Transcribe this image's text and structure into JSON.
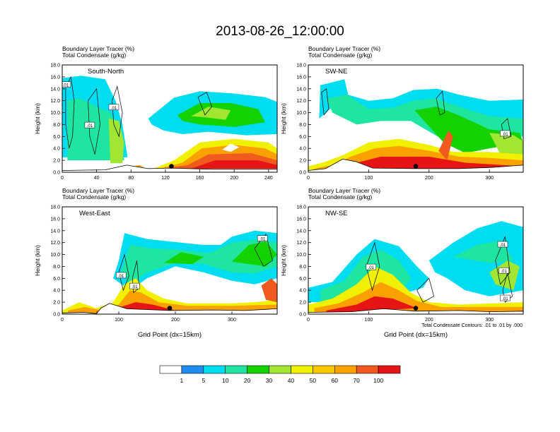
{
  "title": "2013-08-26_12:00:00",
  "colors": {
    "bins": [
      "#ffffff",
      "#1e8cf0",
      "#00dcf0",
      "#1ee6a0",
      "#14d200",
      "#a0e632",
      "#f0f000",
      "#fac800",
      "#faa000",
      "#f05a1e",
      "#e61414"
    ],
    "contour": "#000000",
    "terrain": "#000000"
  },
  "footnote": "Total Condensate Contours: .01 to .01 by .000",
  "chart_data": [
    {
      "type": "heatmap",
      "name": "South-North",
      "title_line1": "Boundary Layer Tracer    (%)",
      "title_line2": "Total Condensate    (g/kg)",
      "xlabel": "",
      "ylabel": "Height (km)",
      "xlim": [
        0,
        250
      ],
      "ylim": [
        0,
        18
      ],
      "xticks": [
        "0",
        "40",
        "80",
        "120",
        "160",
        "200",
        "240"
      ],
      "yticks": [
        "0.0",
        "2.0",
        "4.0",
        "6.0",
        "8.0",
        "10.0",
        "12.0",
        "14.0",
        "16.0",
        "18.0"
      ],
      "contour_labels": [
        ".01",
        ".01",
        ".01"
      ],
      "marker": [
        127,
        1.0
      ]
    },
    {
      "type": "heatmap",
      "name": "SW-NE",
      "title_line1": "Boundary Layer Tracer    (%)",
      "title_line2": "Total Condensate    (g/kg)",
      "xlabel": "",
      "ylabel": "Height (km)",
      "xlim": [
        0,
        356
      ],
      "ylim": [
        0,
        18
      ],
      "xticks": [
        "0",
        "100",
        "200",
        "300"
      ],
      "yticks": [
        "0.0",
        "2.0",
        "4.0",
        "6.0",
        "8.0",
        "10.0",
        "12.0",
        "14.0",
        "16.0",
        "18.0"
      ],
      "contour_labels": [
        ".01"
      ],
      "marker": [
        178,
        1.0
      ]
    },
    {
      "type": "heatmap",
      "name": "West-East",
      "title_line1": "Boundary Layer Tracer    (%)",
      "title_line2": "Total Condensate    (g/kg)",
      "xlabel": "Grid Point (dx=15km)",
      "ylabel": "Height (km)",
      "xlim": [
        0,
        380
      ],
      "ylim": [
        0,
        18
      ],
      "xticks": [
        "0",
        "100",
        "200",
        "300"
      ],
      "yticks": [
        "0.0",
        "2.0",
        "4.0",
        "6.0",
        "8.0",
        "10.0",
        "12.0",
        "14.0",
        "16.0",
        "18.0"
      ],
      "contour_labels": [
        ".01",
        ".01",
        ".01"
      ],
      "marker": [
        190,
        1.0
      ]
    },
    {
      "type": "heatmap",
      "name": "NW-SE",
      "title_line1": "Boundary Layer Tracer    (%)",
      "title_line2": "Total Condensate    (g/kg)",
      "xlabel": "Grid Point (dx=15km)",
      "ylabel": "Height (km)",
      "xlim": [
        0,
        356
      ],
      "ylim": [
        0,
        18
      ],
      "xticks": [
        "0",
        "100",
        "200",
        "300"
      ],
      "yticks": [
        "0.0",
        "2.0",
        "4.0",
        "6.0",
        "8.0",
        "10.0",
        "12.0",
        "14.0",
        "16.0",
        "18.0"
      ],
      "contour_labels": [
        ".01",
        ".01",
        ".01",
        ".01"
      ],
      "marker": [
        178,
        1.0
      ]
    }
  ],
  "colorbar": {
    "levels": [
      "1",
      "5",
      "10",
      "20",
      "30",
      "40",
      "50",
      "60",
      "70",
      "100"
    ]
  }
}
